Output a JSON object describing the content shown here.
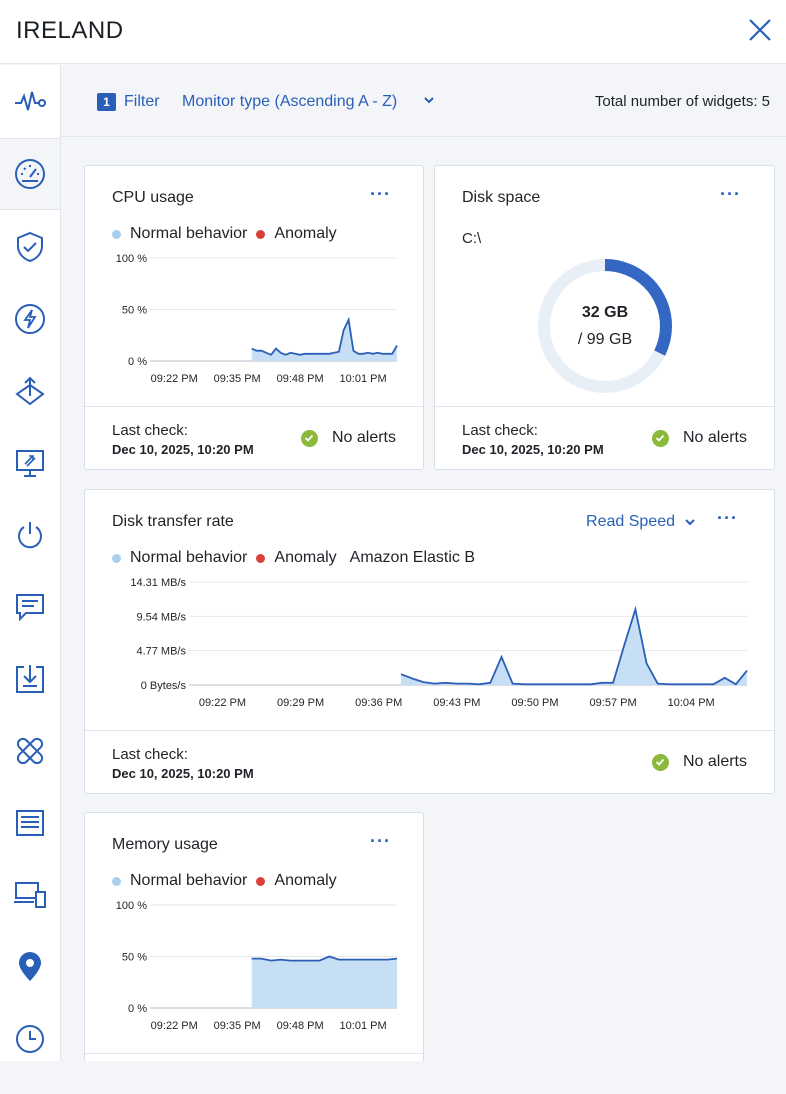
{
  "header": {
    "title": "IRELAND"
  },
  "toolbar": {
    "filter_count": "1",
    "filter_label": "Filter",
    "sort_label": "Monitor type (Ascending A - Z)",
    "total_widgets": "Total number of widgets: 5"
  },
  "legend": {
    "normal": "Normal behavior",
    "anomaly": "Anomaly"
  },
  "colors": {
    "accent": "#2a5fb8",
    "series_line": "#2b5fb8",
    "series_fill": "#c6dff5",
    "ok": "#8ab93c",
    "anomaly": "#d9403b"
  },
  "sidebar": {
    "items": [
      {
        "icon": "pulse-icon"
      },
      {
        "icon": "gauge-icon",
        "active": true
      },
      {
        "icon": "shield-check-icon"
      },
      {
        "icon": "lightning-icon"
      },
      {
        "icon": "arrows-icon"
      },
      {
        "icon": "remote-desktop-icon"
      },
      {
        "icon": "power-icon"
      },
      {
        "icon": "chat-icon"
      },
      {
        "icon": "download-icon"
      },
      {
        "icon": "bandage-icon"
      },
      {
        "icon": "server-icon"
      },
      {
        "icon": "devices-icon"
      },
      {
        "icon": "location-pin-icon"
      },
      {
        "icon": "clock-icon"
      }
    ]
  },
  "widgets": {
    "cpu": {
      "title": "CPU usage",
      "last_check_label": "Last check:",
      "last_check_value": "Dec 10, 2025, 10:20 PM",
      "status": "No alerts"
    },
    "disk_space": {
      "title": "Disk space",
      "drive": "C:\\",
      "used": "32 GB",
      "total": "/ 99 GB",
      "used_fraction": 0.323,
      "last_check_label": "Last check:",
      "last_check_value": "Dec 10, 2025, 10:20 PM",
      "status": "No alerts"
    },
    "disk_transfer": {
      "title": "Disk transfer rate",
      "mode": "Read Speed",
      "extra_legend": "Amazon Elastic B",
      "last_check_label": "Last check:",
      "last_check_value": "Dec 10, 2025, 10:20 PM",
      "status": "No alerts"
    },
    "memory": {
      "title": "Memory usage"
    }
  },
  "chart_data": [
    {
      "id": "cpu",
      "type": "area",
      "y_ticks": [
        "100 %",
        "50 %",
        "0 %"
      ],
      "ylim": [
        0,
        100
      ],
      "x_ticks": [
        "09:22 PM",
        "09:35 PM",
        "09:48 PM",
        "10:01 PM"
      ],
      "x_range": [
        "09:17 PM",
        "10:08 PM"
      ],
      "series": [
        {
          "x": [
            "09:38 PM",
            "09:39 PM",
            "09:40 PM",
            "09:41 PM",
            "09:42 PM",
            "09:43 PM",
            "09:44 PM",
            "09:45 PM",
            "09:46 PM",
            "09:47 PM",
            "09:48 PM",
            "09:49 PM",
            "09:50 PM",
            "09:51 PM",
            "09:52 PM",
            "09:53 PM",
            "09:54 PM",
            "09:55 PM",
            "09:56 PM",
            "09:57 PM",
            "09:58 PM",
            "09:59 PM",
            "10:00 PM",
            "10:01 PM",
            "10:02 PM",
            "10:03 PM",
            "10:04 PM",
            "10:05 PM",
            "10:06 PM",
            "10:07 PM",
            "10:08 PM"
          ],
          "values": [
            12,
            10,
            10,
            8,
            6,
            12,
            8,
            6,
            8,
            7,
            6,
            7,
            7,
            7,
            7,
            7,
            7,
            8,
            9,
            30,
            40,
            10,
            7,
            7,
            8,
            7,
            8,
            7,
            7,
            7,
            15
          ]
        }
      ]
    },
    {
      "id": "disk_transfer",
      "type": "area",
      "y_ticks": [
        "14.31 MB/s",
        "9.54 MB/s",
        "4.77 MB/s",
        "0 Bytes/s"
      ],
      "ylim": [
        0,
        14.31
      ],
      "x_ticks": [
        "09:22 PM",
        "09:29 PM",
        "09:36 PM",
        "09:43 PM",
        "09:50 PM",
        "09:57 PM",
        "10:04 PM"
      ],
      "x_range": [
        "09:19 PM",
        "10:09 PM"
      ],
      "series": [
        {
          "x": [
            "09:38 PM",
            "09:39 PM",
            "09:40 PM",
            "09:41 PM",
            "09:42 PM",
            "09:43 PM",
            "09:44 PM",
            "09:45 PM",
            "09:46 PM",
            "09:47 PM",
            "09:48 PM",
            "09:49 PM",
            "09:50 PM",
            "09:51 PM",
            "09:52 PM",
            "09:53 PM",
            "09:54 PM",
            "09:55 PM",
            "09:56 PM",
            "09:57 PM",
            "09:58 PM",
            "09:59 PM",
            "10:00 PM",
            "10:01 PM",
            "10:02 PM",
            "10:03 PM",
            "10:04 PM",
            "10:05 PM",
            "10:06 PM",
            "10:07 PM",
            "10:08 PM",
            "10:09 PM"
          ],
          "values": [
            1.5,
            0.9,
            0.4,
            0.2,
            0.3,
            0.2,
            0.2,
            0.1,
            0.3,
            3.9,
            0.2,
            0.1,
            0.1,
            0.1,
            0.1,
            0.1,
            0.1,
            0.1,
            0.3,
            0.3,
            5.5,
            10.5,
            3,
            0.2,
            0.1,
            0.1,
            0.1,
            0.1,
            0.1,
            1,
            0.1,
            2
          ]
        }
      ]
    },
    {
      "id": "memory",
      "type": "area",
      "y_ticks": [
        "100 %",
        "50 %",
        "0 %"
      ],
      "ylim": [
        0,
        100
      ],
      "x_ticks": [
        "09:22 PM",
        "09:35 PM",
        "09:48 PM",
        "10:01 PM"
      ],
      "x_range": [
        "09:17 PM",
        "10:08 PM"
      ],
      "series": [
        {
          "x": [
            "09:38 PM",
            "09:40 PM",
            "09:42 PM",
            "09:44 PM",
            "09:46 PM",
            "09:48 PM",
            "09:50 PM",
            "09:52 PM",
            "09:54 PM",
            "09:56 PM",
            "09:58 PM",
            "10:00 PM",
            "10:02 PM",
            "10:04 PM",
            "10:06 PM",
            "10:08 PM"
          ],
          "values": [
            48,
            48,
            46,
            47,
            46,
            46,
            46,
            46,
            50,
            47,
            47,
            47,
            47,
            47,
            47,
            48
          ]
        }
      ]
    }
  ]
}
